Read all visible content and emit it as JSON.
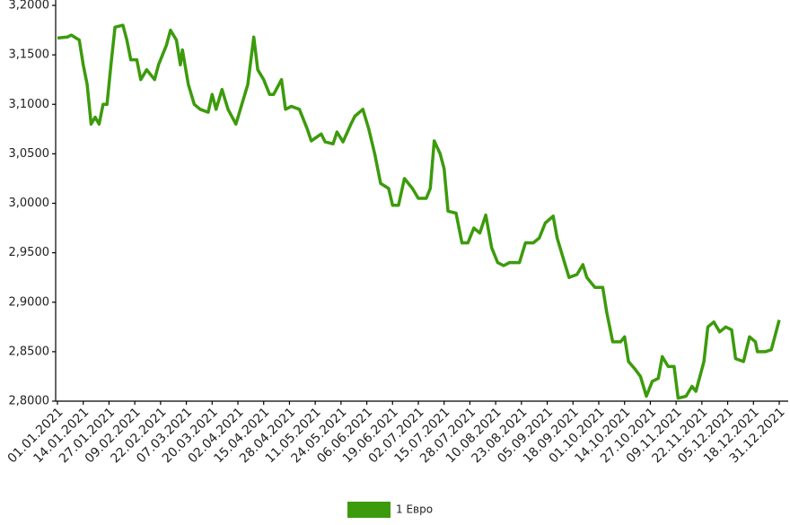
{
  "chart_data": {
    "type": "line",
    "x": [
      "01.01.2021",
      "06.01.2021",
      "08.01.2021",
      "12.01.2021",
      "14.01.2021",
      "16.01.2021",
      "18.01.2021",
      "20.01.2021",
      "22.01.2021",
      "24.01.2021",
      "26.01.2021",
      "28.01.2021",
      "30.01.2021",
      "03.02.2021",
      "05.02.2021",
      "07.02.2021",
      "10.02.2021",
      "12.02.2021",
      "15.02.2021",
      "19.02.2021",
      "21.02.2021",
      "25.02.2021",
      "27.02.2021",
      "02.03.2021",
      "04.03.2021",
      "05.03.2021",
      "08.03.2021",
      "11.03.2021",
      "14.03.2021",
      "18.03.2021",
      "20.03.2021",
      "22.03.2021",
      "25.03.2021",
      "28.03.2021",
      "01.04.2021",
      "04.04.2021",
      "07.04.2021",
      "10.04.2021",
      "12.04.2021",
      "15.04.2021",
      "18.04.2021",
      "20.04.2021",
      "24.04.2021",
      "26.04.2021",
      "29.04.2021",
      "03.05.2021",
      "07.05.2021",
      "09.05.2021",
      "14.05.2021",
      "16.05.2021",
      "20.05.2021",
      "22.05.2021",
      "25.05.2021",
      "29.05.2021",
      "31.05.2021",
      "04.06.2021",
      "07.06.2021",
      "10.06.2021",
      "13.06.2021",
      "17.06.2021",
      "19.06.2021",
      "22.06.2021",
      "25.06.2021",
      "29.06.2021",
      "02.07.2021",
      "06.07.2021",
      "08.07.2021",
      "10.07.2021",
      "13.07.2021",
      "15.07.2021",
      "17.07.2021",
      "21.07.2021",
      "24.07.2021",
      "27.07.2021",
      "30.07.2021",
      "02.08.2021",
      "05.08.2021",
      "08.08.2021",
      "11.08.2021",
      "14.08.2021",
      "17.08.2021",
      "22.08.2021",
      "25.08.2021",
      "29.08.2021",
      "01.09.2021",
      "04.09.2021",
      "08.09.2021",
      "10.09.2021",
      "13.09.2021",
      "16.09.2021",
      "20.09.2021",
      "23.09.2021",
      "25.09.2021",
      "29.09.2021",
      "03.10.2021",
      "05.10.2021",
      "08.10.2021",
      "12.10.2021",
      "14.10.2021",
      "16.10.2021",
      "19.10.2021",
      "22.10.2021",
      "25.10.2021",
      "28.10.2021",
      "31.10.2021",
      "02.11.2021",
      "05.11.2021",
      "08.11.2021",
      "10.11.2021",
      "14.11.2021",
      "17.11.2021",
      "19.11.2021",
      "23.11.2021",
      "25.11.2021",
      "28.11.2021",
      "01.12.2021",
      "04.12.2021",
      "07.12.2021",
      "09.12.2021",
      "13.12.2021",
      "16.12.2021",
      "19.12.2021",
      "20.12.2021",
      "24.12.2021",
      "27.12.2021",
      "31.12.2021"
    ],
    "series": [
      {
        "name": "1 Евро",
        "color": "#3c9b0c",
        "values": [
          3.167,
          3.168,
          3.17,
          3.165,
          3.14,
          3.12,
          3.08,
          3.087,
          3.08,
          3.1,
          3.1,
          3.14,
          3.178,
          3.18,
          3.165,
          3.145,
          3.145,
          3.125,
          3.135,
          3.125,
          3.14,
          3.16,
          3.175,
          3.165,
          3.14,
          3.155,
          3.12,
          3.1,
          3.095,
          3.092,
          3.11,
          3.095,
          3.115,
          3.095,
          3.08,
          3.1,
          3.12,
          3.168,
          3.135,
          3.125,
          3.11,
          3.11,
          3.125,
          3.095,
          3.098,
          3.095,
          3.075,
          3.063,
          3.07,
          3.062,
          3.06,
          3.072,
          3.062,
          3.08,
          3.088,
          3.095,
          3.075,
          3.05,
          3.02,
          3.015,
          2.998,
          2.998,
          3.025,
          3.015,
          3.005,
          3.005,
          3.015,
          3.063,
          3.05,
          3.035,
          2.992,
          2.99,
          2.96,
          2.96,
          2.975,
          2.97,
          2.988,
          2.955,
          2.94,
          2.937,
          2.94,
          2.94,
          2.96,
          2.96,
          2.965,
          2.98,
          2.987,
          2.965,
          2.945,
          2.925,
          2.928,
          2.938,
          2.925,
          2.915,
          2.915,
          2.89,
          2.86,
          2.86,
          2.865,
          2.84,
          2.833,
          2.825,
          2.805,
          2.82,
          2.823,
          2.845,
          2.835,
          2.835,
          2.803,
          2.805,
          2.815,
          2.81,
          2.84,
          2.875,
          2.88,
          2.87,
          2.875,
          2.872,
          2.843,
          2.84,
          2.865,
          2.86,
          2.85,
          2.85,
          2.852,
          2.882
        ]
      }
    ],
    "xlim": [
      "01.01.2021",
      "31.12.2021"
    ],
    "xticks": [
      "01.01.2021",
      "14.01.2021",
      "27.01.2021",
      "09.02.2021",
      "22.02.2021",
      "07.03.2021",
      "20.03.2021",
      "02.04.2021",
      "15.04.2021",
      "28.04.2021",
      "11.05.2021",
      "24.05.2021",
      "06.06.2021",
      "19.06.2021",
      "02.07.2021",
      "15.07.2021",
      "28.07.2021",
      "10.08.2021",
      "23.08.2021",
      "05.09.2021",
      "18.09.2021",
      "01.10.2021",
      "14.10.2021",
      "27.10.2021",
      "09.11.2021",
      "22.11.2021",
      "05.12.2021",
      "18.12.2021",
      "31.12.2021"
    ],
    "ylim": [
      2.8,
      3.2
    ],
    "yticks": [
      {
        "value": 2.8,
        "label": "2,8000"
      },
      {
        "value": 2.85,
        "label": "2,8500"
      },
      {
        "value": 2.9,
        "label": "2,9000"
      },
      {
        "value": 2.95,
        "label": "2,9500"
      },
      {
        "value": 3.0,
        "label": "3,0000"
      },
      {
        "value": 3.05,
        "label": "3,0500"
      },
      {
        "value": 3.1,
        "label": "3,1000"
      },
      {
        "value": 3.15,
        "label": "3,1500"
      },
      {
        "value": 3.2,
        "label": "3,2000"
      }
    ],
    "legend": "bottom"
  }
}
